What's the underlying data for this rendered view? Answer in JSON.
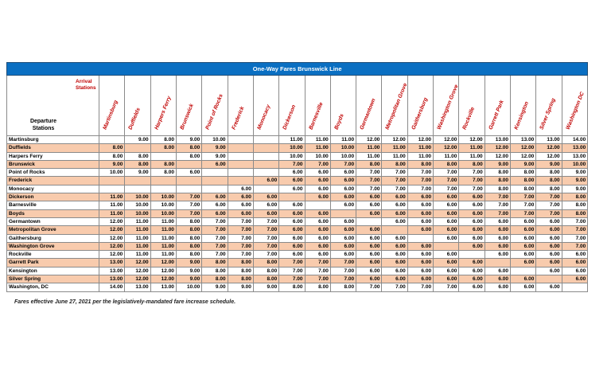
{
  "table": {
    "title": "One-Way Fares Brunswick Line",
    "arrival_label": "Arrival Stations",
    "departure_label": "Departure Stations",
    "columns": [
      "Martinsburg",
      "Duffields",
      "Harpers Ferry",
      "Brunswick",
      "Point of Rocks",
      "Frederick",
      "Monocacy",
      "Dickerson",
      "Barnesville",
      "Boyds",
      "Germantown",
      "Metropolitan Grove",
      "Gaithersburg",
      "Washington Grove",
      "Rockville",
      "Garrett Park",
      "Kensington",
      "Silver Spring",
      "Washington DC"
    ],
    "rows": [
      {
        "station": "Martinsburg",
        "fares": [
          null,
          "9.00",
          "8.00",
          "9.00",
          "10.00",
          null,
          null,
          "11.00",
          "11.00",
          "11.00",
          "12.00",
          "12.00",
          "12.00",
          "12.00",
          "12.00",
          "13.00",
          "13.00",
          "13.00",
          "14.00"
        ]
      },
      {
        "station": "Duffields",
        "fares": [
          "8.00",
          null,
          "8.00",
          "8.00",
          "9.00",
          null,
          null,
          "10.00",
          "11.00",
          "10.00",
          "11.00",
          "11.00",
          "11.00",
          "12.00",
          "11.00",
          "12.00",
          "12.00",
          "12.00",
          "13.00"
        ]
      },
      {
        "station": "Harpers Ferry",
        "fares": [
          "8.00",
          "8.00",
          null,
          "8.00",
          "9.00",
          null,
          null,
          "10.00",
          "10.00",
          "10.00",
          "11.00",
          "11.00",
          "11.00",
          "11.00",
          "11.00",
          "12.00",
          "12.00",
          "12.00",
          "13.00"
        ]
      },
      {
        "station": "Brunswick",
        "fares": [
          "9.00",
          "8.00",
          "8.00",
          null,
          "6.00",
          null,
          null,
          "7.00",
          "7.00",
          "7.00",
          "8.00",
          "8.00",
          "8.00",
          "8.00",
          "8.00",
          "9.00",
          "9.00",
          "9.00",
          "10.00"
        ]
      },
      {
        "station": "Point of Rocks",
        "fares": [
          "10.00",
          "9.00",
          "8.00",
          "6.00",
          null,
          null,
          null,
          "6.00",
          "6.00",
          "6.00",
          "7.00",
          "7.00",
          "7.00",
          "7.00",
          "7.00",
          "8.00",
          "8.00",
          "8.00",
          "9.00"
        ]
      },
      {
        "station": "Frederick",
        "fares": [
          null,
          null,
          null,
          null,
          null,
          null,
          "6.00",
          "6.00",
          "6.00",
          "6.00",
          "7.00",
          "7.00",
          "7.00",
          "7.00",
          "7.00",
          "8.00",
          "8.00",
          "8.00",
          "9.00"
        ]
      },
      {
        "station": "Monocacy",
        "fares": [
          null,
          null,
          null,
          null,
          null,
          "6.00",
          null,
          "6.00",
          "6.00",
          "6.00",
          "7.00",
          "7.00",
          "7.00",
          "7.00",
          "7.00",
          "8.00",
          "8.00",
          "8.00",
          "9.00"
        ]
      },
      {
        "station": "Dickerson",
        "fares": [
          "11.00",
          "10.00",
          "10.00",
          "7.00",
          "6.00",
          "6.00",
          "6.00",
          null,
          "6.00",
          "6.00",
          "6.00",
          "6.00",
          "6.00",
          "6.00",
          "6.00",
          "7.00",
          "7.00",
          "7.00",
          "8.00"
        ]
      },
      {
        "station": "Barnesville",
        "fares": [
          "11.00",
          "10.00",
          "10.00",
          "7.00",
          "6.00",
          "6.00",
          "6.00",
          "6.00",
          null,
          "6.00",
          "6.00",
          "6.00",
          "6.00",
          "6.00",
          "6.00",
          "7.00",
          "7.00",
          "7.00",
          "8.00"
        ]
      },
      {
        "station": "Boyds",
        "fares": [
          "11.00",
          "10.00",
          "10.00",
          "7.00",
          "6.00",
          "6.00",
          "6.00",
          "6.00",
          "6.00",
          null,
          "6.00",
          "6.00",
          "6.00",
          "6.00",
          "6.00",
          "7.00",
          "7.00",
          "7.00",
          "8.00"
        ]
      },
      {
        "station": "Germantown",
        "fares": [
          "12.00",
          "11.00",
          "11.00",
          "8.00",
          "7.00",
          "7.00",
          "7.00",
          "6.00",
          "6.00",
          "6.00",
          null,
          "6.00",
          "6.00",
          "6.00",
          "6.00",
          "6.00",
          "6.00",
          "6.00",
          "7.00"
        ]
      },
      {
        "station": "Metropolitan Grove",
        "fares": [
          "12.00",
          "11.00",
          "11.00",
          "8.00",
          "7.00",
          "7.00",
          "7.00",
          "6.00",
          "6.00",
          "6.00",
          "6.00",
          null,
          "6.00",
          "6.00",
          "6.00",
          "6.00",
          "6.00",
          "6.00",
          "7.00"
        ]
      },
      {
        "station": "Gaithersburg",
        "fares": [
          "12.00",
          "11.00",
          "11.00",
          "8.00",
          "7.00",
          "7.00",
          "7.00",
          "6.00",
          "6.00",
          "6.00",
          "6.00",
          "6.00",
          null,
          "6.00",
          "6.00",
          "6.00",
          "6.00",
          "6.00",
          "7.00"
        ]
      },
      {
        "station": "Washington Grove",
        "fares": [
          "12.00",
          "11.00",
          "11.00",
          "8.00",
          "7.00",
          "7.00",
          "7.00",
          "6.00",
          "6.00",
          "6.00",
          "6.00",
          "6.00",
          "6.00",
          null,
          "6.00",
          "6.00",
          "6.00",
          "6.00",
          "7.00"
        ]
      },
      {
        "station": "Rockville",
        "fares": [
          "12.00",
          "11.00",
          "11.00",
          "8.00",
          "7.00",
          "7.00",
          "7.00",
          "6.00",
          "6.00",
          "6.00",
          "6.00",
          "6.00",
          "6.00",
          "6.00",
          null,
          "6.00",
          "6.00",
          "6.00",
          "6.00"
        ]
      },
      {
        "station": "Garrett Park",
        "fares": [
          "13.00",
          "12.00",
          "12.00",
          "9.00",
          "8.00",
          "8.00",
          "8.00",
          "7.00",
          "7.00",
          "7.00",
          "6.00",
          "6.00",
          "6.00",
          "6.00",
          "6.00",
          null,
          "6.00",
          "6.00",
          "6.00"
        ]
      },
      {
        "station": "Kensington",
        "fares": [
          "13.00",
          "12.00",
          "12.00",
          "9.00",
          "8.00",
          "8.00",
          "8.00",
          "7.00",
          "7.00",
          "7.00",
          "6.00",
          "6.00",
          "6.00",
          "6.00",
          "6.00",
          "6.00",
          null,
          "6.00",
          "6.00"
        ]
      },
      {
        "station": "Silver Spring",
        "fares": [
          "13.00",
          "12.00",
          "12.00",
          "9.00",
          "8.00",
          "8.00",
          "8.00",
          "7.00",
          "7.00",
          "7.00",
          "6.00",
          "6.00",
          "6.00",
          "6.00",
          "6.00",
          "6.00",
          "6.00",
          null,
          "6.00"
        ]
      },
      {
        "station": "Washington, DC",
        "fares": [
          "14.00",
          "13.00",
          "13.00",
          "10.00",
          "9.00",
          "9.00",
          "9.00",
          "8.00",
          "8.00",
          "8.00",
          "7.00",
          "7.00",
          "7.00",
          "7.00",
          "6.00",
          "6.00",
          "6.00",
          "6.00",
          null
        ]
      }
    ]
  },
  "footnote": "Fares effective June 27, 2021 per the legislatively-mandated fare increase schedule."
}
